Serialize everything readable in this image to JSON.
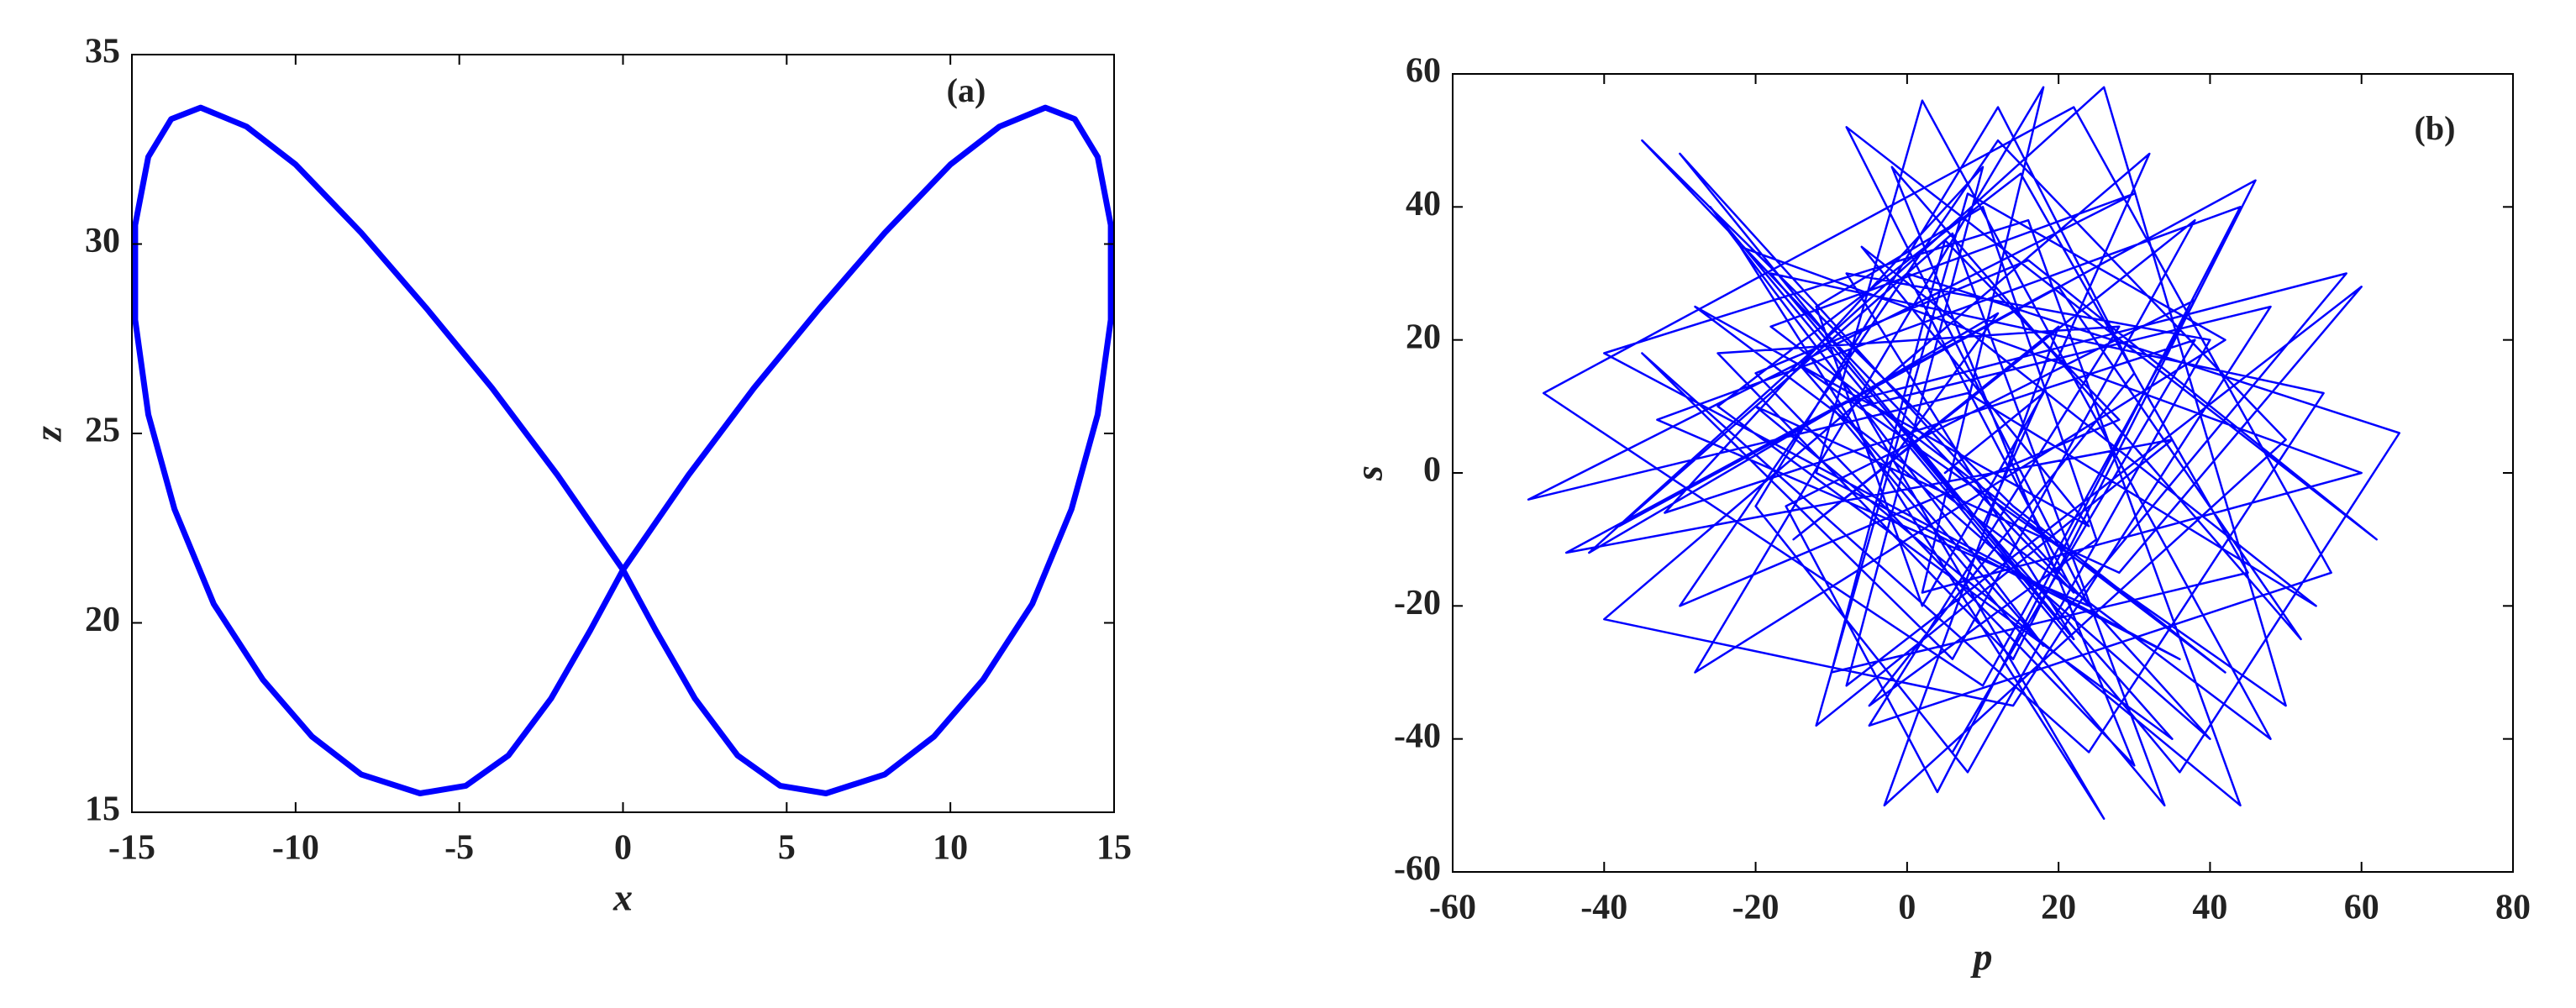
{
  "chart_data": [
    {
      "type": "line",
      "annotation": "(a)",
      "xlabel": "x",
      "ylabel": "z",
      "color": "#0000ff",
      "xlim": [
        -15,
        15
      ],
      "ylim": [
        15,
        35
      ],
      "xticks": [
        -15,
        -10,
        -5,
        0,
        5,
        10,
        15
      ],
      "yticks": [
        15,
        20,
        25,
        30,
        35
      ],
      "x": [
        0,
        2,
        4,
        6,
        8,
        10,
        11.5,
        12.9,
        13.8,
        14.5,
        14.9,
        14.9,
        14.5,
        13.7,
        12.5,
        11,
        9.5,
        8,
        6.2,
        4.8,
        3.5,
        2.2,
        1,
        0,
        -1,
        -2.2,
        -3.5,
        -4.8,
        -6.2,
        -8,
        -9.5,
        -11,
        -12.5,
        -13.7,
        -14.5,
        -14.9,
        -14.9,
        -14.5,
        -13.8,
        -12.9,
        -11.5,
        -10,
        -8,
        -6,
        -4,
        -2,
        0
      ],
      "values": [
        21.4,
        23.9,
        26.2,
        28.3,
        30.3,
        32.1,
        33.1,
        33.6,
        33.3,
        32.3,
        30.5,
        28,
        25.5,
        23,
        20.5,
        18.5,
        17,
        16,
        15.5,
        15.7,
        16.5,
        18,
        19.8,
        21.4,
        19.8,
        18,
        16.5,
        15.7,
        15.5,
        16,
        17,
        18.5,
        20.5,
        23,
        25.5,
        28,
        30.5,
        32.3,
        33.3,
        33.6,
        33.1,
        32.1,
        30.3,
        28.3,
        26.2,
        23.9,
        21.4
      ]
    },
    {
      "type": "line",
      "annotation": "(b)",
      "xlabel": "p",
      "ylabel": "s",
      "color": "#0000ff",
      "xlim": [
        -60,
        80
      ],
      "ylim": [
        -60,
        60
      ],
      "xticks": [
        -60,
        -40,
        -20,
        0,
        20,
        40,
        60,
        80
      ],
      "yticks": [
        -60,
        -40,
        -20,
        0,
        20,
        40,
        60
      ],
      "x": [
        5,
        18,
        2,
        -12,
        10,
        25,
        -5,
        30,
        12,
        -20,
        8,
        40,
        -8,
        22,
        0,
        35,
        -25,
        15,
        45,
        -10,
        5,
        28,
        -30,
        12,
        50,
        -3,
        20,
        -15,
        38,
        6,
        -35,
        24,
        55,
        -18,
        10,
        32,
        -40,
        14,
        48,
        -6,
        26,
        -22,
        60,
        2,
        18,
        -28,
        42,
        8,
        -12,
        35,
        -45,
        20,
        52,
        -2,
        30,
        -20,
        16,
        62,
        -8,
        24,
        -33,
        44,
        4,
        -16,
        38,
        10,
        -48,
        22,
        56,
        -5,
        28,
        -25,
        14,
        46,
        -38,
        6,
        34,
        -10,
        58,
        20,
        -30,
        40,
        -2,
        12,
        -42,
        26,
        50,
        -14,
        18,
        -26,
        36,
        65,
        0,
        22,
        -35,
        14,
        42,
        -18,
        30,
        -50,
        8,
        54,
        -6,
        24,
        -28,
        48,
        2,
        -12,
        36,
        -40,
        16,
        44,
        -20,
        28,
        60,
        -8,
        10,
        -32,
        38,
        6
      ],
      "values": [
        0,
        12,
        -20,
        25,
        40,
        -10,
        -35,
        15,
        55,
        -5,
        -45,
        20,
        30,
        -25,
        5,
        -40,
        10,
        45,
        -15,
        -30,
        35,
        8,
        -20,
        50,
        5,
        -50,
        22,
        -10,
        38,
        -28,
        18,
        -42,
        12,
        30,
        -8,
        48,
        -22,
        -35,
        25,
        10,
        -52,
        34,
        0,
        -18,
        58,
        -30,
        20,
        42,
        -38,
        5,
        -12,
        28,
        -25,
        46,
        -44,
        15,
        32,
        -10,
        52,
        -20,
        8,
        40,
        -48,
        -5,
        26,
        -32,
        12,
        55,
        -15,
        -38,
        22,
        18,
        -28,
        44,
        -8,
        36,
        -50,
        10,
        30,
        -22,
        48,
        -40,
        2,
        24,
        -12,
        58,
        -35,
        16,
        -26,
        40,
        -45,
        6,
        30,
        -18,
        50,
        -5,
        -30,
        22,
        42,
        -4,
        12,
        -20,
        34,
        -8,
        25,
        -40,
        56,
        0,
        -28,
        18,
        38,
        -50,
        10,
        -15,
        28,
        -32,
        46,
        -6,
        20,
        -42
      ]
    }
  ]
}
